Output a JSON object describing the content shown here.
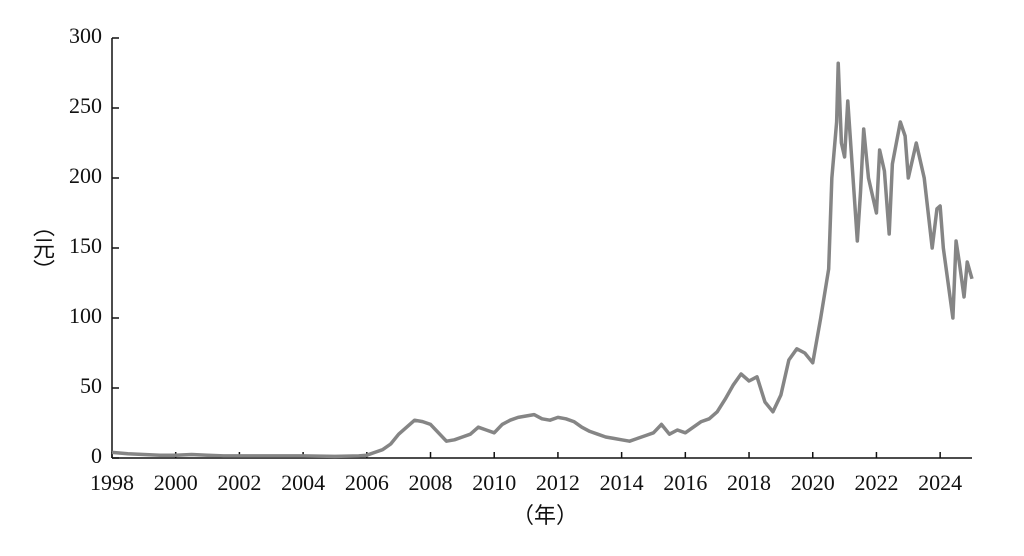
{
  "chart_data": {
    "type": "line",
    "x_label": "（年）",
    "y_label": "（元）",
    "x": [
      1998,
      1998.5,
      1999,
      1999.5,
      2000,
      2000.5,
      2001,
      2001.5,
      2002,
      2003,
      2004,
      2005,
      2005.75,
      2006,
      2006.25,
      2006.5,
      2006.75,
      2007,
      2007.25,
      2007.5,
      2007.75,
      2008,
      2008.25,
      2008.5,
      2008.75,
      2009,
      2009.25,
      2009.5,
      2009.75,
      2010,
      2010.25,
      2010.5,
      2010.75,
      2011,
      2011.25,
      2011.5,
      2011.75,
      2012,
      2012.25,
      2012.5,
      2012.75,
      2013,
      2013.25,
      2013.5,
      2013.75,
      2014,
      2014.25,
      2014.5,
      2014.75,
      2015,
      2015.25,
      2015.5,
      2015.75,
      2016,
      2016.25,
      2016.5,
      2016.75,
      2017,
      2017.25,
      2017.5,
      2017.75,
      2018,
      2018.25,
      2018.5,
      2018.75,
      2019,
      2019.25,
      2019.5,
      2019.75,
      2020,
      2020.25,
      2020.5,
      2020.6,
      2020.75,
      2020.8,
      2020.9,
      2021,
      2021.1,
      2021.25,
      2021.4,
      2021.5,
      2021.6,
      2021.75,
      2022,
      2022.1,
      2022.25,
      2022.4,
      2022.5,
      2022.75,
      2022.9,
      2023,
      2023.25,
      2023.5,
      2023.75,
      2023.9,
      2024,
      2024.1,
      2024.25,
      2024.4,
      2024.5,
      2024.6,
      2024.75,
      2024.85,
      2025
    ],
    "values": [
      4,
      3,
      2.5,
      2,
      2,
      2.5,
      2,
      1.5,
      1.5,
      1.5,
      1.5,
      1.2,
      1.5,
      2,
      4,
      6,
      10,
      17,
      22,
      27,
      26,
      24,
      18,
      12,
      13,
      15,
      17,
      22,
      20,
      18,
      24,
      27,
      29,
      30,
      31,
      28,
      27,
      29,
      28,
      26,
      22,
      19,
      17,
      15,
      14,
      13,
      12,
      14,
      16,
      18,
      24,
      17,
      20,
      18,
      22,
      26,
      28,
      33,
      42,
      52,
      60,
      55,
      58,
      40,
      33,
      45,
      70,
      78,
      75,
      68,
      100,
      135,
      200,
      240,
      282,
      225,
      215,
      255,
      205,
      155,
      190,
      235,
      200,
      175,
      220,
      205,
      160,
      210,
      240,
      230,
      200,
      225,
      200,
      150,
      178,
      180,
      150,
      125,
      100,
      155,
      140,
      115,
      140,
      128
    ],
    "color": "#858585",
    "xlim": [
      1998,
      2025
    ],
    "xticks": [
      1998,
      2000,
      2002,
      2004,
      2006,
      2008,
      2010,
      2012,
      2014,
      2016,
      2018,
      2020,
      2022,
      2024
    ],
    "ylim": [
      0,
      300
    ],
    "yticks": [
      0,
      50,
      100,
      150,
      200,
      250,
      300
    ],
    "grid": false
  }
}
